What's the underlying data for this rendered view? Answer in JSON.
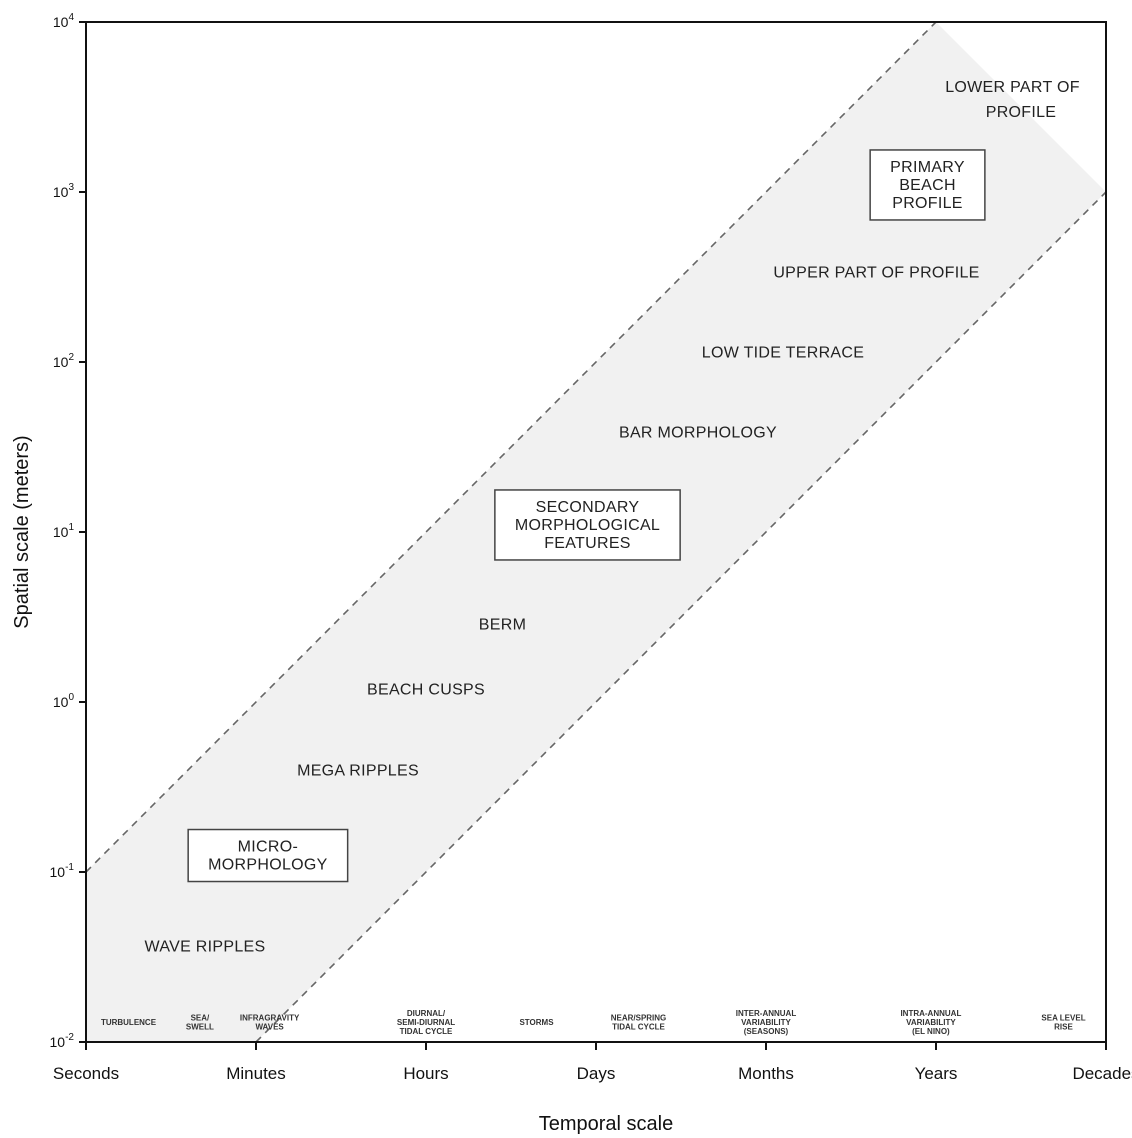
{
  "chart_data": {
    "type": "scatter",
    "xlabel": "Temporal scale",
    "ylabel": "Spatial scale (meters)",
    "x_categories": [
      "Seconds",
      "Minutes",
      "Hours",
      "Days",
      "Months",
      "Years",
      "Decades"
    ],
    "y_scale": "log",
    "y_ticks": [
      {
        "base": "10",
        "exp": "-2",
        "value": 0.01
      },
      {
        "base": "10",
        "exp": "-1",
        "value": 0.1
      },
      {
        "base": "10",
        "exp": "0",
        "value": 1
      },
      {
        "base": "10",
        "exp": "1",
        "value": 10
      },
      {
        "base": "10",
        "exp": "2",
        "value": 100
      },
      {
        "base": "10",
        "exp": "3",
        "value": 1000
      },
      {
        "base": "10",
        "exp": "4",
        "value": 10000
      }
    ],
    "ylim": [
      0.01,
      10000
    ],
    "band": {
      "upper": [
        {
          "x": "Seconds",
          "y": 0.1
        },
        {
          "x": "Years",
          "y": 10000
        }
      ],
      "lower": [
        {
          "x": "Minutes",
          "y": 0.01
        },
        {
          "x": "Decades",
          "y": 1000
        }
      ]
    },
    "features": [
      {
        "label": "WAVE RIPPLES",
        "x": 0.7,
        "y": 0.037
      },
      {
        "label": "MEGA RIPPLES",
        "x": 1.6,
        "y": 0.4
      },
      {
        "label": "BEACH CUSPS",
        "x": 2.0,
        "y": 1.2
      },
      {
        "label": "BERM",
        "x": 2.45,
        "y": 2.9
      },
      {
        "label": "BAR MORPHOLOGY",
        "x": 3.6,
        "y": 39
      },
      {
        "label": "LOW TIDE TERRACE",
        "x": 4.1,
        "y": 115
      },
      {
        "label": "UPPER PART OF PROFILE",
        "x": 4.65,
        "y": 340
      },
      {
        "label": "LOWER PART OF",
        "x": 5.45,
        "y": 4200
      },
      {
        "label": "PROFILE",
        "x": 5.5,
        "y": 3000
      }
    ],
    "boxes": [
      {
        "lines": [
          "MICRO-",
          "MORPHOLOGY"
        ],
        "x": 1.07,
        "y": 0.125
      },
      {
        "lines": [
          "SECONDARY",
          "MORPHOLOGICAL",
          "FEATURES"
        ],
        "x": 2.95,
        "y": 11
      },
      {
        "lines": [
          "PRIMARY",
          "BEACH",
          "PROFILE"
        ],
        "x": 4.95,
        "y": 1100
      }
    ],
    "processes": [
      {
        "lines": [
          "TURBULENCE"
        ],
        "x": 0.25
      },
      {
        "lines": [
          "SEA/",
          "SWELL"
        ],
        "x": 0.67
      },
      {
        "lines": [
          "INFRAGRAVITY",
          "WAVES"
        ],
        "x": 1.08
      },
      {
        "lines": [
          "DIURNAL/",
          "SEMI-DIURNAL",
          "TIDAL CYCLE"
        ],
        "x": 2.0
      },
      {
        "lines": [
          "STORMS"
        ],
        "x": 2.65
      },
      {
        "lines": [
          "NEAR/SPRING",
          "TIDAL CYCLE"
        ],
        "x": 3.25
      },
      {
        "lines": [
          "INTER-ANNUAL",
          "VARIABILITY",
          "(SEASONS)"
        ],
        "x": 4.0
      },
      {
        "lines": [
          "INTRA-ANNUAL",
          "VARIABILITY",
          "(EL NINO)"
        ],
        "x": 4.97
      },
      {
        "lines": [
          "SEA LEVEL",
          "RISE"
        ],
        "x": 5.75
      }
    ]
  }
}
